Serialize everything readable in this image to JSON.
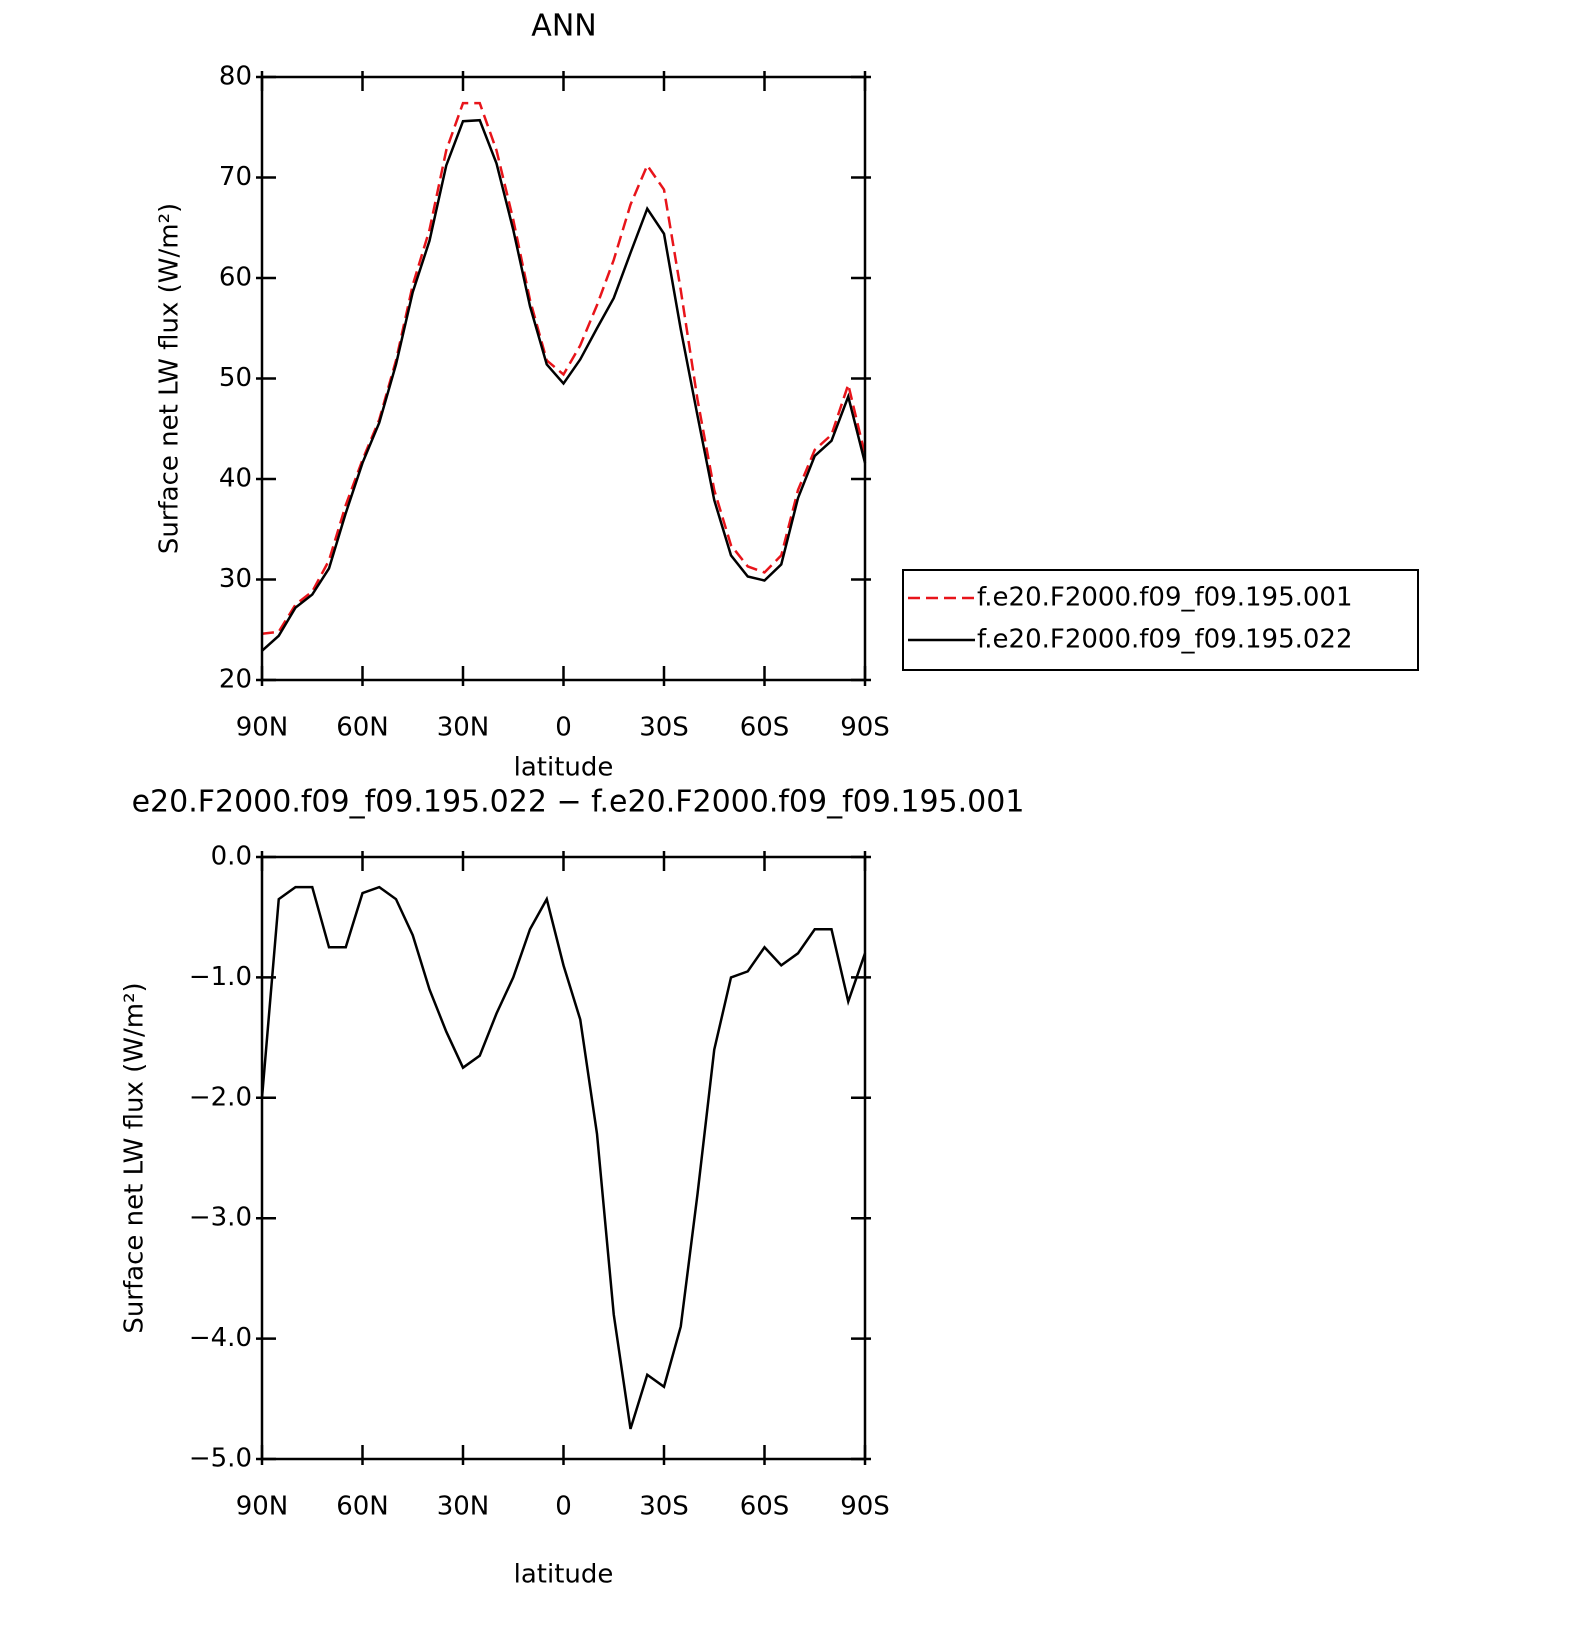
{
  "chart_data": [
    {
      "type": "line",
      "title": "ANN",
      "x_label": "latitude",
      "y_label": "Surface net LW flux (W/m²)",
      "x": [
        90,
        85,
        80,
        75,
        70,
        65,
        60,
        55,
        50,
        45,
        40,
        35,
        30,
        25,
        20,
        15,
        10,
        5,
        0,
        -5,
        -10,
        -15,
        -20,
        -25,
        -30,
        -35,
        -40,
        -45,
        -50,
        -55,
        -60,
        -65,
        -70,
        -75,
        -80,
        -85,
        -90
      ],
      "series": [
        {
          "name": "f.e20.F2000.f09_f09.195.001",
          "color": "#e8141a",
          "dash": true,
          "values": [
            24.6,
            24.8,
            27.5,
            28.8,
            31.9,
            37.4,
            41.9,
            45.9,
            51.8,
            59.3,
            64.8,
            72.7,
            77.4,
            77.4,
            72.7,
            65.8,
            57.8,
            51.8,
            50.4,
            53.3,
            57.3,
            61.8,
            67.3,
            71.2,
            68.8,
            58.8,
            47.9,
            38.9,
            33.4,
            31.3,
            30.7,
            32.4,
            38.9,
            42.9,
            44.4,
            49.4,
            42.4
          ]
        },
        {
          "name": "f.e20.F2000.f09_f09.195.022",
          "color": "#000000",
          "dash": false,
          "values": [
            22.9,
            24.4,
            27.2,
            28.5,
            31.1,
            36.6,
            41.6,
            45.6,
            51.4,
            58.6,
            63.7,
            71.2,
            75.6,
            75.7,
            71.4,
            64.8,
            57.2,
            51.4,
            49.5,
            51.9,
            55.0,
            58.0,
            62.5,
            66.9,
            64.4,
            54.9,
            46.3,
            37.9,
            32.4,
            30.3,
            29.9,
            31.5,
            38.1,
            42.3,
            43.8,
            48.2,
            41.6
          ]
        }
      ],
      "xlim": [
        90,
        -90
      ],
      "xticks": [
        {
          "value": 90,
          "label": "90N"
        },
        {
          "value": 60,
          "label": "60N"
        },
        {
          "value": 30,
          "label": "30N"
        },
        0,
        {
          "value": -30,
          "label": "30S"
        },
        {
          "value": -60,
          "label": "60S"
        },
        {
          "value": -90,
          "label": "90S"
        }
      ],
      "ylim": [
        20,
        80
      ],
      "yticks": [
        20,
        30,
        40,
        50,
        60,
        70,
        80
      ],
      "legend": "right"
    },
    {
      "type": "line",
      "title": "e20.F2000.f09_f09.195.022 − f.e20.F2000.f09_f09.195.001",
      "x_label": "latitude",
      "y_label": "Surface net LW flux (W/m²)",
      "x": [
        90,
        85,
        80,
        75,
        70,
        65,
        60,
        55,
        50,
        45,
        40,
        35,
        30,
        25,
        20,
        15,
        10,
        5,
        0,
        -5,
        -10,
        -15,
        -20,
        -25,
        -30,
        -35,
        -40,
        -45,
        -50,
        -55,
        -60,
        -65,
        -70,
        -75,
        -80,
        -85,
        -90
      ],
      "series": [
        {
          "color": "#000000",
          "dash": false,
          "values": [
            -2.0,
            -0.35,
            -0.25,
            -0.25,
            -0.75,
            -0.75,
            -0.3,
            -0.25,
            -0.35,
            -0.65,
            -1.1,
            -1.45,
            -1.75,
            -1.65,
            -1.3,
            -1.0,
            -0.6,
            -0.35,
            -0.9,
            -1.35,
            -2.3,
            -3.8,
            -4.75,
            -4.3,
            -4.4,
            -3.9,
            -2.8,
            -1.6,
            -1.0,
            -0.95,
            -0.75,
            -0.9,
            -0.8,
            -0.6,
            -0.6,
            -1.2,
            -0.8
          ]
        }
      ],
      "xlim": [
        90,
        -90
      ],
      "xticks": [
        {
          "value": 90,
          "label": "90N"
        },
        {
          "value": 60,
          "label": "60N"
        },
        {
          "value": 30,
          "label": "30N"
        },
        0,
        {
          "value": -30,
          "label": "30S"
        },
        {
          "value": -60,
          "label": "60S"
        },
        {
          "value": -90,
          "label": "90S"
        }
      ],
      "ylim": [
        -5,
        0
      ],
      "yticks": [
        {
          "value": -5,
          "label": "−5.0"
        },
        {
          "value": -4,
          "label": "−4.0"
        },
        {
          "value": -3,
          "label": "−3.0"
        },
        {
          "value": -2,
          "label": "−2.0"
        },
        {
          "value": -1,
          "label": "−1.0"
        },
        {
          "value": 0,
          "label": "0.0"
        }
      ]
    }
  ]
}
